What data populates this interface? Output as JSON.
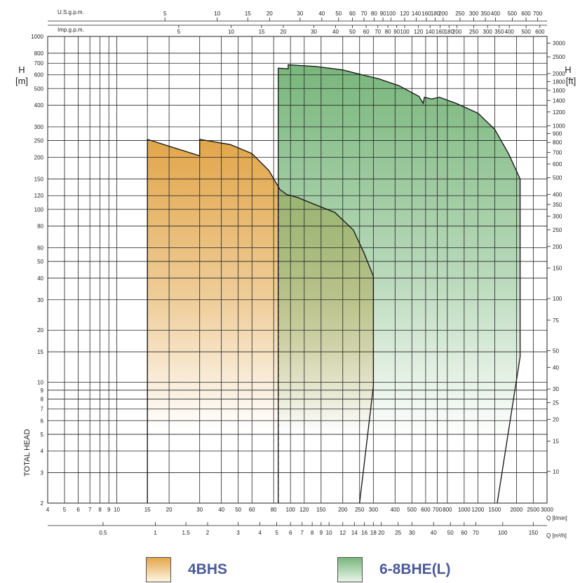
{
  "colors": {
    "series_4bhs": "#e2a64a",
    "series_68bhe": "#79b67c",
    "grid": "#222222",
    "legend_text": "#4a5a9a"
  },
  "chart_data": {
    "type": "area",
    "title": "",
    "ylabel_left": "TOTAL HEAD",
    "y_unit_left": "H\n[m]",
    "y_unit_right": "H\n[ft]",
    "x_scale": "log",
    "y_scale": "log",
    "x_unit_lmin": "Q [l/min]",
    "x_unit_m3h": "Q [m³/h]",
    "x_label_usgpm": "U.S.g.p.m.",
    "x_label_impgpm": "Imp.g.p.m.",
    "xlim_lmin": [
      4,
      3000
    ],
    "ylim_m": [
      2,
      1000
    ],
    "grid": true,
    "ticks": {
      "lmin": [
        "4",
        "5",
        "6",
        "7",
        "8",
        "9",
        "10",
        "15",
        "20",
        "30",
        "40",
        "50",
        "60",
        "80",
        "100",
        "120",
        "150",
        "200",
        "250",
        "300",
        "400",
        "500",
        "600",
        "700",
        "800",
        "1000",
        "1200",
        "1500",
        "2000",
        "2500",
        "3000"
      ],
      "m3h": [
        "0.5",
        "1",
        "1.5",
        "2",
        "3",
        "4",
        "5",
        "6",
        "7",
        "8",
        "9",
        "10",
        "12",
        "14",
        "16",
        "18",
        "20",
        "25",
        "30",
        "40",
        "50",
        "60",
        "70",
        "100",
        "150"
      ],
      "m3h_values": [
        0.5,
        1,
        1.5,
        2,
        3,
        4,
        5,
        6,
        7,
        8,
        9,
        10,
        12,
        14,
        16,
        18,
        20,
        25,
        30,
        40,
        50,
        60,
        70,
        100,
        150
      ],
      "usgpm": [
        "5",
        "10",
        "15",
        "20",
        "30",
        "40",
        "50",
        "60",
        "70",
        "80",
        "90",
        "100",
        "120",
        "140",
        "160",
        "180",
        "200",
        "250",
        "300",
        "350",
        "400",
        "500",
        "600",
        "700"
      ],
      "usgpm_values": [
        5,
        10,
        15,
        20,
        30,
        40,
        50,
        60,
        70,
        80,
        90,
        100,
        120,
        140,
        160,
        180,
        200,
        250,
        300,
        350,
        400,
        500,
        600,
        700
      ],
      "impgpm": [
        "5",
        "10",
        "15",
        "20",
        "30",
        "40",
        "50",
        "60",
        "70",
        "80",
        "90",
        "100",
        "120",
        "140",
        "160",
        "180",
        "200",
        "250",
        "300",
        "350",
        "400",
        "500",
        "600"
      ],
      "impgpm_values": [
        5,
        10,
        15,
        20,
        30,
        40,
        50,
        60,
        70,
        80,
        90,
        100,
        120,
        140,
        160,
        180,
        200,
        250,
        300,
        350,
        400,
        500,
        600
      ],
      "m": [
        "2",
        "3",
        "4",
        "5",
        "6",
        "7",
        "8",
        "9",
        "10",
        "15",
        "20",
        "30",
        "40",
        "50",
        "60",
        "80",
        "100",
        "120",
        "150",
        "200",
        "250",
        "300",
        "400",
        "500",
        "600",
        "700",
        "800",
        "1000"
      ],
      "m_values": [
        2,
        3,
        4,
        5,
        6,
        7,
        8,
        9,
        10,
        15,
        20,
        30,
        40,
        50,
        60,
        80,
        100,
        120,
        150,
        200,
        250,
        300,
        400,
        500,
        600,
        700,
        800,
        1000
      ],
      "ft": [
        "10",
        "15",
        "20",
        "25",
        "30",
        "40",
        "50",
        "75",
        "100",
        "150",
        "200",
        "250",
        "300",
        "350",
        "400",
        "500",
        "600",
        "700",
        "800",
        "900",
        "1000",
        "1200",
        "1400",
        "1600",
        "1800",
        "2000",
        "2500",
        "3000"
      ],
      "ft_values": [
        10,
        15,
        20,
        25,
        30,
        40,
        50,
        75,
        100,
        150,
        200,
        250,
        300,
        350,
        400,
        500,
        600,
        700,
        800,
        900,
        1000,
        1200,
        1400,
        1600,
        1800,
        2000,
        2500,
        3000
      ]
    },
    "series": [
      {
        "name": "4BHS",
        "color_key": "series_4bhs",
        "points": [
          [
            15,
            2
          ],
          [
            15,
            254
          ],
          [
            30,
            204
          ],
          [
            30,
            254
          ],
          [
            45,
            237
          ],
          [
            60,
            210
          ],
          [
            75,
            168
          ],
          [
            87,
            130
          ],
          [
            95,
            122
          ],
          [
            110,
            117
          ],
          [
            140,
            106
          ],
          [
            180,
            96
          ],
          [
            230,
            76
          ],
          [
            265,
            56
          ],
          [
            300,
            41
          ],
          [
            300,
            9.5
          ],
          [
            250,
            2
          ]
        ]
      },
      {
        "name": "6-8BHE(L)",
        "color_key": "series_68bhe",
        "points": [
          [
            85,
            2
          ],
          [
            85,
            655
          ],
          [
            97,
            650
          ],
          [
            97,
            685
          ],
          [
            140,
            670
          ],
          [
            200,
            640
          ],
          [
            250,
            605
          ],
          [
            320,
            570
          ],
          [
            420,
            520
          ],
          [
            550,
            450
          ],
          [
            580,
            410
          ],
          [
            590,
            445
          ],
          [
            650,
            435
          ],
          [
            720,
            445
          ],
          [
            900,
            410
          ],
          [
            1200,
            360
          ],
          [
            1500,
            290
          ],
          [
            1800,
            210
          ],
          [
            2100,
            150
          ],
          [
            2100,
            14
          ],
          [
            1550,
            2
          ]
        ]
      }
    ],
    "dashed_line": {
      "x": 85,
      "y_from": 2,
      "y_to": 150
    },
    "legend": {
      "placement": "bottom",
      "items": [
        "4BHS",
        "6-8BHE(L)"
      ]
    }
  }
}
